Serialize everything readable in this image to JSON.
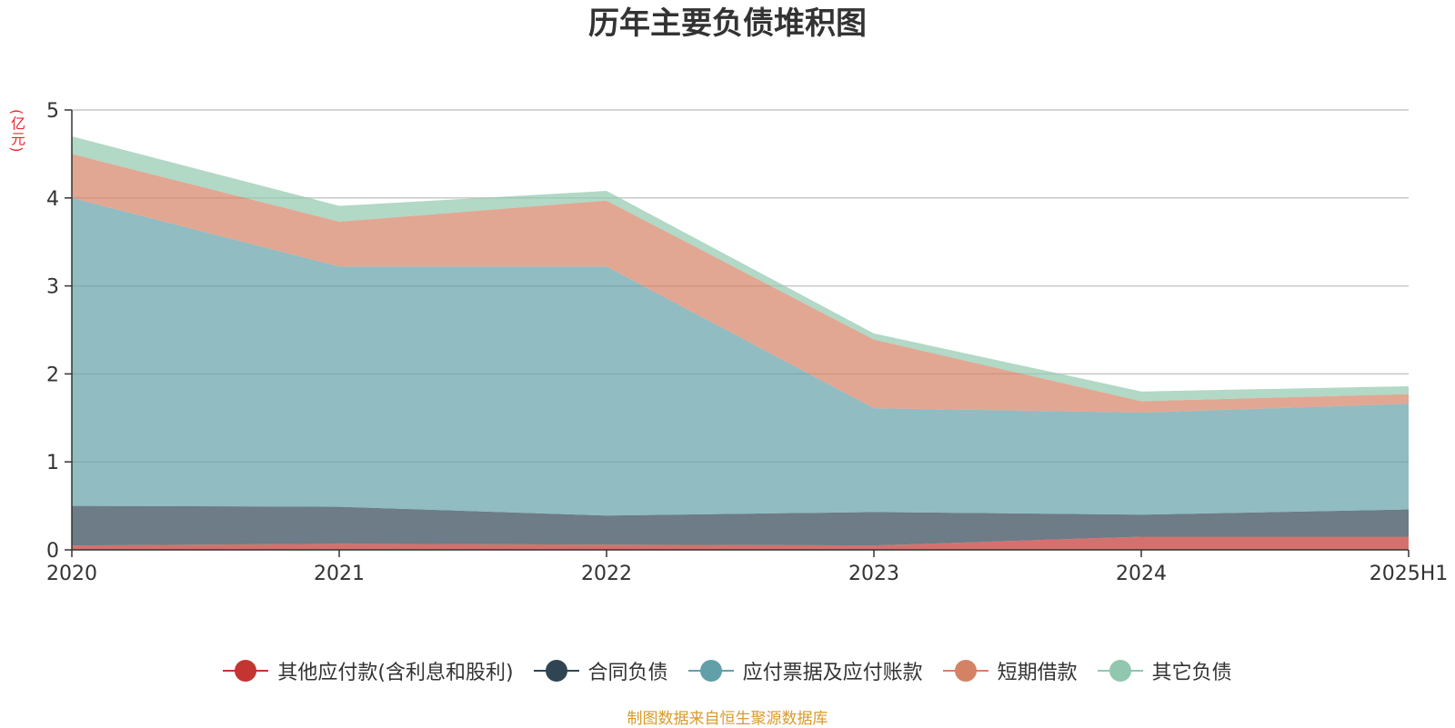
{
  "chart_data": {
    "type": "area",
    "stacked": true,
    "title": "历年主要负债堆积图",
    "ylabel": "(亿元)",
    "xlabel": "",
    "categories": [
      "2020",
      "2021",
      "2022",
      "2023",
      "2024",
      "2025H1"
    ],
    "ylim": [
      0,
      5
    ],
    "yticks": [
      0,
      1,
      2,
      3,
      4,
      5
    ],
    "grid": true,
    "legend_position": "bottom",
    "series": [
      {
        "name": "其他应付款(含利息和股利)",
        "color": "#c23531",
        "values": [
          0.05,
          0.07,
          0.06,
          0.05,
          0.15,
          0.15
        ]
      },
      {
        "name": "合同负债",
        "color": "#2f4554",
        "values": [
          0.45,
          0.42,
          0.33,
          0.38,
          0.25,
          0.31
        ]
      },
      {
        "name": "应付票据及应付账款",
        "color": "#61a0a8",
        "values": [
          3.5,
          2.73,
          2.83,
          1.18,
          1.16,
          1.2
        ]
      },
      {
        "name": "短期借款",
        "color": "#d48265",
        "values": [
          0.5,
          0.51,
          0.75,
          0.78,
          0.13,
          0.11
        ]
      },
      {
        "name": "其它负债",
        "color": "#91c7ae",
        "values": [
          0.2,
          0.18,
          0.11,
          0.07,
          0.11,
          0.09
        ]
      }
    ],
    "source": "制图数据来自恒生聚源数据库"
  }
}
